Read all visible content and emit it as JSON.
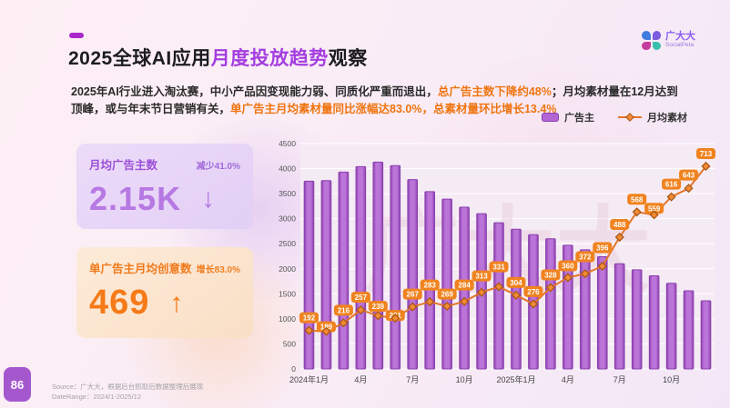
{
  "logo": {
    "name": "广大大",
    "sub": "SocialPeta"
  },
  "header": {
    "title_prefix": "2025全球AI应用",
    "title_highlight": "月度投放趋势",
    "title_suffix": "观察"
  },
  "intro": {
    "seg1": "2025年AI行业进入淘汰赛，中小产品因变现能力弱、同质化严重而退出，",
    "seg2_highlight": "总广告主数下降约48%",
    "seg3": "；月均素材量在12月达到顶峰，或与年末节日营销有关，",
    "seg4_highlight": "单广告主月均素材量同比涨幅达83.0%，总素材量环比增长13.4%"
  },
  "stat_cards": [
    {
      "label": "月均广告主数",
      "badge": "减少41.0%",
      "value": "2.15K",
      "arrow": "↓"
    },
    {
      "label": "单广告主月均创意数",
      "badge": "增长83.0%",
      "value": "469",
      "arrow": "↑"
    }
  ],
  "chart_data": {
    "type": "bar+line",
    "legend": [
      {
        "label": "广告主",
        "kind": "bar"
      },
      {
        "label": "月均素材",
        "kind": "line"
      }
    ],
    "bars": {
      "name": "广告主",
      "values": [
        3750,
        3760,
        3930,
        4040,
        4130,
        4060,
        3780,
        3540,
        3390,
        3230,
        3100,
        2920,
        2790,
        2680,
        2600,
        2470,
        2380,
        2240,
        2100,
        1980,
        1860,
        1710,
        1560,
        1360
      ]
    },
    "line": {
      "name": "月均素材",
      "values": [
        192,
        189,
        216,
        257,
        239,
        231,
        267,
        283,
        269,
        284,
        313,
        331,
        304,
        276,
        328,
        360,
        372,
        396,
        488,
        568,
        559,
        616,
        643,
        713
      ],
      "secondary_axis_range": [
        70,
        785
      ]
    },
    "ylim": [
      0,
      4500
    ],
    "yticks": [
      0,
      500,
      1000,
      1500,
      2000,
      2500,
      3000,
      3500,
      4000,
      4500
    ],
    "x_tick_indices": [
      0,
      3,
      6,
      9,
      12,
      15,
      18,
      21
    ],
    "x_tick_labels": [
      "2024年1月",
      "4月",
      "7月",
      "10月",
      "2025年1月",
      "4月",
      "7月",
      "10月"
    ],
    "grid": true,
    "legend_position": "top-right",
    "watermark": "广大大",
    "colors": {
      "bar_fill": "#bb74d8",
      "bar_edge": "#8a3fae",
      "line": "#e4752a",
      "marker_fill": "#ef8a36",
      "marker_edge": "#a85411",
      "label_bg": "#f0831f",
      "label_text": "#ffffff"
    }
  },
  "footer": {
    "page": "86",
    "source_line1": "Source：广大大，根据后台抓取后数据整理后展现",
    "source_line2": "DateRange：2024/1-2025/12"
  }
}
